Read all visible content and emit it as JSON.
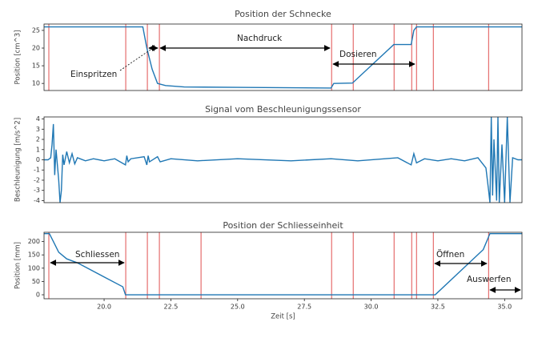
{
  "chart_data": [
    {
      "type": "line",
      "title": "Position der Schnecke",
      "ylabel": "Position [cm^3]",
      "x": [
        17.75,
        21.45,
        21.6,
        21.8,
        22.0,
        22.3,
        23.0,
        25.0,
        28.5,
        28.6,
        29.3,
        30.85,
        31.5,
        31.6,
        31.7,
        35.65
      ],
      "values": [
        26,
        26,
        20,
        14,
        10,
        9.4,
        9,
        8.9,
        8.7,
        10,
        10.1,
        21,
        21,
        25,
        26,
        26
      ],
      "color": "#1f77b4",
      "xlim": [
        17.75,
        35.65
      ],
      "ylim": [
        8,
        26.8
      ],
      "yticks": [
        10,
        15,
        20,
        25
      ],
      "vlines": [
        17.93,
        20.81,
        21.62,
        22.07,
        28.52,
        29.33,
        30.86,
        31.52,
        31.7,
        32.33,
        34.4
      ],
      "vline_color": "#e05050",
      "annotations": [
        "Einspritzen",
        "Nachdruck",
        "Dosieren"
      ]
    },
    {
      "type": "line",
      "title": "Signal vom Beschleunigungssensor",
      "ylabel": "Beschleunigung [m/s^2]",
      "x": [
        17.75,
        17.9,
        18.0,
        18.05,
        18.1,
        18.15,
        18.2,
        18.25,
        18.3,
        18.35,
        18.4,
        18.45,
        18.5,
        18.6,
        18.7,
        18.8,
        18.9,
        19.0,
        19.3,
        19.6,
        20.0,
        20.4,
        20.8,
        20.85,
        20.9,
        21.0,
        21.5,
        21.6,
        21.65,
        21.7,
        22.0,
        22.1,
        22.5,
        23.5,
        25.0,
        27.0,
        28.5,
        29.5,
        31.0,
        31.5,
        31.6,
        31.7,
        32.0,
        32.5,
        33.0,
        33.5,
        34.0,
        34.3,
        34.4,
        34.45,
        34.5,
        34.55,
        34.6,
        34.7,
        34.75,
        34.8,
        34.9,
        35.0,
        35.1,
        35.2,
        35.3,
        35.5,
        35.65
      ],
      "values": [
        0,
        0,
        0.2,
        1.5,
        3.5,
        -1.5,
        1,
        -0.5,
        -2,
        -4.2,
        -3,
        0.5,
        -0.5,
        0.8,
        -0.3,
        0.6,
        -0.4,
        0.2,
        -0.1,
        0.1,
        -0.1,
        0.1,
        -0.5,
        0.4,
        -0.2,
        0.1,
        0.3,
        -0.5,
        0.4,
        -0.2,
        0.3,
        -0.2,
        0.1,
        -0.1,
        0.1,
        -0.1,
        0.1,
        -0.1,
        0.2,
        -0.5,
        0.6,
        -0.3,
        0.1,
        -0.1,
        0.1,
        -0.1,
        0.2,
        -0.8,
        -3,
        -4.2,
        4.2,
        -3.5,
        2,
        -4,
        4.2,
        -4.2,
        1.5,
        -4.2,
        4.2,
        -4.2,
        0.2,
        0,
        0
      ],
      "color": "#1f77b4",
      "xlim": [
        17.75,
        35.65
      ],
      "ylim": [
        -4.2,
        4.2
      ],
      "yticks": [
        -4,
        -3,
        -2,
        -1,
        0,
        1,
        2,
        3,
        4
      ]
    },
    {
      "type": "line",
      "title": "Position der Schliesseinheit",
      "ylabel": "Position [mm]",
      "xlabel": "Zeit [s]",
      "x": [
        17.75,
        17.95,
        18.1,
        18.3,
        18.6,
        19.0,
        20.7,
        20.8,
        32.4,
        34.2,
        34.45,
        35.65
      ],
      "values": [
        230,
        230,
        200,
        160,
        135,
        120,
        30,
        0,
        0,
        170,
        230,
        230
      ],
      "color": "#1f77b4",
      "xlim": [
        17.75,
        35.65
      ],
      "ylim": [
        -15,
        235
      ],
      "yticks": [
        0,
        50,
        100,
        150,
        200
      ],
      "xticks": [
        {
          "value": 20,
          "label": "20.0"
        },
        22.5,
        {
          "value": 25,
          "label": "25.0"
        },
        27.5,
        {
          "value": 30,
          "label": "30.0"
        },
        32.5,
        {
          "value": 35,
          "label": "35.0"
        }
      ],
      "vlines": [
        17.93,
        20.81,
        21.62,
        22.07,
        23.63,
        28.52,
        29.33,
        30.86,
        31.52,
        31.7,
        32.33,
        34.4
      ],
      "vline_color": "#e05050",
      "annotations": [
        "Schliessen",
        "Öffnen",
        "Auswerfen"
      ]
    }
  ]
}
